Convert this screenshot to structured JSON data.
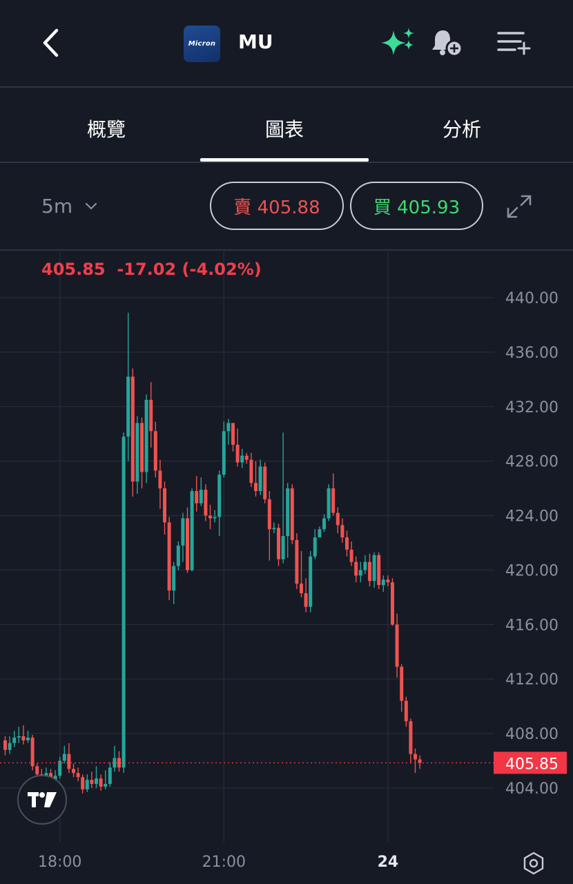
{
  "header": {
    "back_label": "back",
    "logo_text": "Micron",
    "ticker": "MU"
  },
  "tabs": [
    {
      "label": "概覽",
      "active": false
    },
    {
      "label": "圖表",
      "active": true
    },
    {
      "label": "分析",
      "active": false
    }
  ],
  "controls": {
    "interval": "5m",
    "sell_label": "賣 405.88",
    "buy_label": "買 405.93"
  },
  "price_info": "405.85  -17.02 (-4.02%)",
  "colors": {
    "background": "#161a25",
    "up": "#26a69a",
    "down": "#ef5350",
    "current_price_tag": "#f23645",
    "sparkle": "#3ddc97"
  },
  "icons": [
    "back-icon",
    "sparkle-icon",
    "bell-plus-icon",
    "menu-plus-icon",
    "chevron-down-icon",
    "expand-icon",
    "tradingview-logo-icon",
    "settings-hex-icon"
  ],
  "chart_data": {
    "type": "candlestick",
    "y_ticks": [
      "440.00",
      "436.00",
      "432.00",
      "428.00",
      "424.00",
      "420.00",
      "416.00",
      "412.00",
      "408.00",
      "404.00"
    ],
    "ylim": [
      401.0,
      443.0
    ],
    "x_labels": [
      {
        "label": "18:00",
        "index": 12,
        "bold": false
      },
      {
        "label": "21:00",
        "index": 48,
        "bold": false
      },
      {
        "label": "24",
        "index": 84,
        "bold": true
      }
    ],
    "current_price": "405.85",
    "candles": [
      [
        407.5,
        406.8,
        407.8,
        406.4
      ],
      [
        406.8,
        407.3,
        407.8,
        406.5
      ],
      [
        407.3,
        407.7,
        408.2,
        407.0
      ],
      [
        407.7,
        407.8,
        408.5,
        407.3
      ],
      [
        407.8,
        407.5,
        408.6,
        407.2
      ],
      [
        407.5,
        407.7,
        408.2,
        407.3
      ],
      [
        407.7,
        405.6,
        407.9,
        405.3
      ],
      [
        405.6,
        405.0,
        405.8,
        404.6
      ],
      [
        405.0,
        404.7,
        405.4,
        404.3
      ],
      [
        404.7,
        405.1,
        405.5,
        404.5
      ],
      [
        405.1,
        404.6,
        405.4,
        404.2
      ],
      [
        404.6,
        404.9,
        405.3,
        404.4
      ],
      [
        404.9,
        406.0,
        406.3,
        404.7
      ],
      [
        406.0,
        406.5,
        407.1,
        405.8
      ],
      [
        406.5,
        405.4,
        407.3,
        405.1
      ],
      [
        405.4,
        405.1,
        405.8,
        404.8
      ],
      [
        405.1,
        404.8,
        405.5,
        404.5
      ],
      [
        404.8,
        403.9,
        405.0,
        403.6
      ],
      [
        403.9,
        404.6,
        405.0,
        403.7
      ],
      [
        404.6,
        404.3,
        405.2,
        404.0
      ],
      [
        404.3,
        404.7,
        405.6,
        404.0
      ],
      [
        404.7,
        404.1,
        405.0,
        403.8
      ],
      [
        404.1,
        404.3,
        405.3,
        403.9
      ],
      [
        404.3,
        405.5,
        405.9,
        404.1
      ],
      [
        405.5,
        406.2,
        407.1,
        405.2
      ],
      [
        406.2,
        405.5,
        406.7,
        405.2
      ],
      [
        405.5,
        429.8,
        430.1,
        405.1
      ],
      [
        429.8,
        434.2,
        438.9,
        428.0
      ],
      [
        434.2,
        426.5,
        434.8,
        425.4
      ],
      [
        426.5,
        430.8,
        431.3,
        425.6
      ],
      [
        430.8,
        427.2,
        431.2,
        426.0
      ],
      [
        427.2,
        432.5,
        432.9,
        426.4
      ],
      [
        432.5,
        430.2,
        433.8,
        429.0
      ],
      [
        430.2,
        427.3,
        430.9,
        426.8
      ],
      [
        427.3,
        426.0,
        428.1,
        424.5
      ],
      [
        426.0,
        423.5,
        426.5,
        422.6
      ],
      [
        423.5,
        418.5,
        423.9,
        417.8
      ],
      [
        418.5,
        420.3,
        420.6,
        417.5
      ],
      [
        420.3,
        421.8,
        422.1,
        420.0
      ],
      [
        421.8,
        423.8,
        424.2,
        420.6
      ],
      [
        423.8,
        420.0,
        424.6,
        419.8
      ],
      [
        420.0,
        425.8,
        426.0,
        419.9
      ],
      [
        425.8,
        424.9,
        426.9,
        424.3
      ],
      [
        424.9,
        425.9,
        426.8,
        424.7
      ],
      [
        425.9,
        424.0,
        426.3,
        423.6
      ],
      [
        424.0,
        423.8,
        424.8,
        423.0
      ],
      [
        423.8,
        423.9,
        424.4,
        423.5
      ],
      [
        423.9,
        427.0,
        427.3,
        422.5
      ],
      [
        427.0,
        430.2,
        430.9,
        426.8
      ],
      [
        430.2,
        430.8,
        431.1,
        429.2
      ],
      [
        430.8,
        429.2,
        430.5,
        428.7
      ],
      [
        429.2,
        427.9,
        430.4,
        427.6
      ],
      [
        427.9,
        428.4,
        428.9,
        427.5
      ],
      [
        428.4,
        428.1,
        428.6,
        427.8
      ],
      [
        428.1,
        426.4,
        428.6,
        426.1
      ],
      [
        426.4,
        425.8,
        428.0,
        425.4
      ],
      [
        425.8,
        427.6,
        428.1,
        425.5
      ],
      [
        427.6,
        425.2,
        427.9,
        424.9
      ],
      [
        425.2,
        423.0,
        425.8,
        420.7
      ],
      [
        423.0,
        423.1,
        423.5,
        422.7
      ],
      [
        423.1,
        420.8,
        423.4,
        420.3
      ],
      [
        420.8,
        422.5,
        430.1,
        420.5
      ],
      [
        422.5,
        426.0,
        426.4,
        420.9
      ],
      [
        426.0,
        422.2,
        426.3,
        421.9
      ],
      [
        422.2,
        419.0,
        422.7,
        418.6
      ],
      [
        419.0,
        418.3,
        421.4,
        418.0
      ],
      [
        418.3,
        417.3,
        419.4,
        416.9
      ],
      [
        417.3,
        421.0,
        421.4,
        416.9
      ],
      [
        421.0,
        422.4,
        423.0,
        420.8
      ],
      [
        422.4,
        423.0,
        423.2,
        422.7
      ],
      [
        423.0,
        423.8,
        424.1,
        422.8
      ],
      [
        423.8,
        426.0,
        426.3,
        423.6
      ],
      [
        426.0,
        424.2,
        427.1,
        424.0
      ],
      [
        424.2,
        423.3,
        424.6,
        422.7
      ],
      [
        423.3,
        422.4,
        423.8,
        422.0
      ],
      [
        422.4,
        421.5,
        422.9,
        421.0
      ],
      [
        421.5,
        420.6,
        422.1,
        420.3
      ],
      [
        420.6,
        419.6,
        421.0,
        419.1
      ],
      [
        419.6,
        420.0,
        420.6,
        419.1
      ],
      [
        420.0,
        420.6,
        421.1,
        419.7
      ],
      [
        420.6,
        419.2,
        421.2,
        418.8
      ],
      [
        419.2,
        421.1,
        421.3,
        418.7
      ],
      [
        421.1,
        418.9,
        421.3,
        418.6
      ],
      [
        418.9,
        419.3,
        419.6,
        418.4
      ],
      [
        419.3,
        419.1,
        419.6,
        418.8
      ],
      [
        419.1,
        416.0,
        419.4,
        415.9
      ],
      [
        416.0,
        412.9,
        416.8,
        412.1
      ],
      [
        412.9,
        410.4,
        413.1,
        409.6
      ],
      [
        410.4,
        408.9,
        410.7,
        408.5
      ],
      [
        408.9,
        406.5,
        409.1,
        405.8
      ],
      [
        406.5,
        406.1,
        406.9,
        405.1
      ],
      [
        406.1,
        405.85,
        406.4,
        405.4
      ]
    ]
  }
}
